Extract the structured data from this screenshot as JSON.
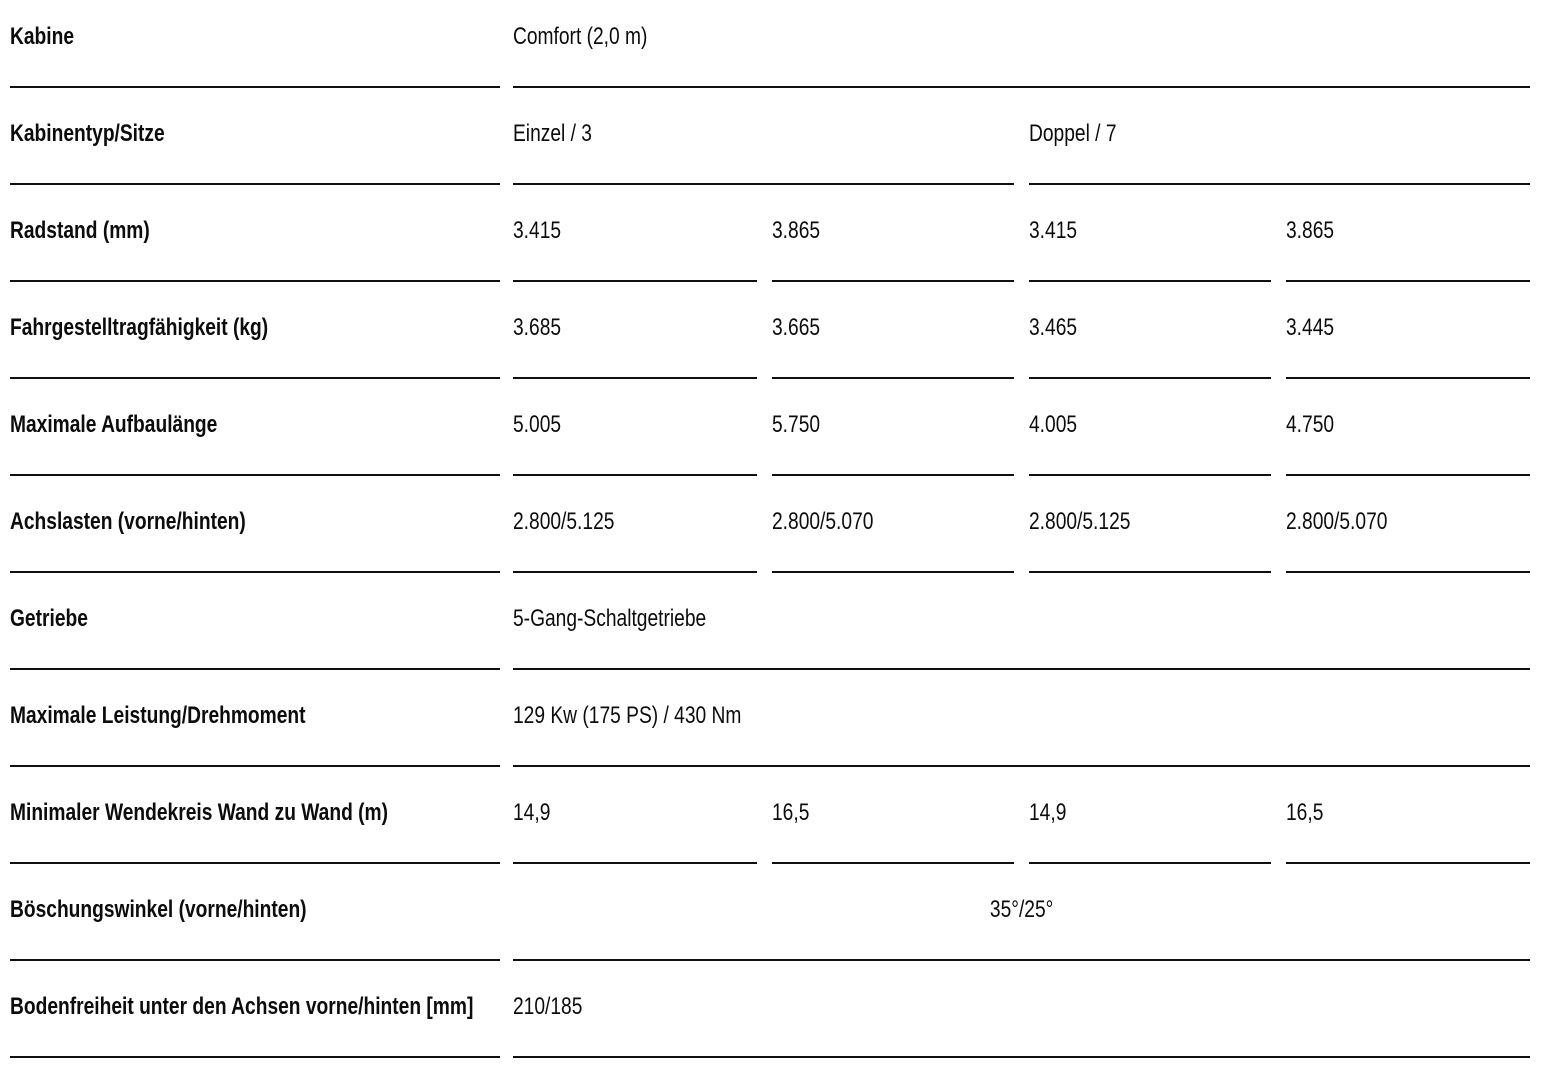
{
  "table": {
    "title_semantic": "vehicle-specification-table",
    "colors": {
      "background": "#ffffff",
      "text": "#0c0c0c",
      "rule": "#101010"
    },
    "cabin_groups": [
      "Einzel / 3",
      "Doppel / 7"
    ],
    "rows": [
      {
        "label": "Kabine",
        "type": "span",
        "values": [
          "Comfort (2,0 m)"
        ]
      },
      {
        "label": "Kabinentyp/Sitze",
        "type": "half",
        "values": [
          "Einzel / 3",
          "Doppel / 7"
        ]
      },
      {
        "label": "Radstand (mm)",
        "type": "four",
        "values": [
          "3.415",
          "3.865",
          "3.415",
          "3.865"
        ]
      },
      {
        "label": "Fahrgestelltragfähigkeit (kg)",
        "type": "four",
        "values": [
          "3.685",
          "3.665",
          "3.465",
          "3.445"
        ]
      },
      {
        "label": "Maximale Aufbaulänge",
        "type": "four",
        "values": [
          "5.005",
          "5.750",
          "4.005",
          "4.750"
        ]
      },
      {
        "label": "Achslasten (vorne/hinten)",
        "type": "four",
        "values": [
          "2.800/5.125",
          "2.800/5.070",
          "2.800/5.125",
          "2.800/5.070"
        ]
      },
      {
        "label": "Getriebe",
        "type": "span",
        "values": [
          "5-Gang-Schaltgetriebe"
        ]
      },
      {
        "label": "Maximale Leistung/Drehmoment",
        "type": "span",
        "values": [
          "129 Kw (175 PS) / 430 Nm"
        ]
      },
      {
        "label": "Minimaler Wendekreis Wand zu Wand (m)",
        "type": "four",
        "values": [
          "14,9",
          "16,5",
          "14,9",
          "16,5"
        ]
      },
      {
        "label": "Böschungswinkel (vorne/hinten)",
        "type": "span-center",
        "values": [
          "35°/25°"
        ]
      },
      {
        "label": "Bodenfreiheit unter den Achsen vorne/hinten [mm]",
        "type": "span",
        "values": [
          "210/185"
        ]
      }
    ]
  }
}
